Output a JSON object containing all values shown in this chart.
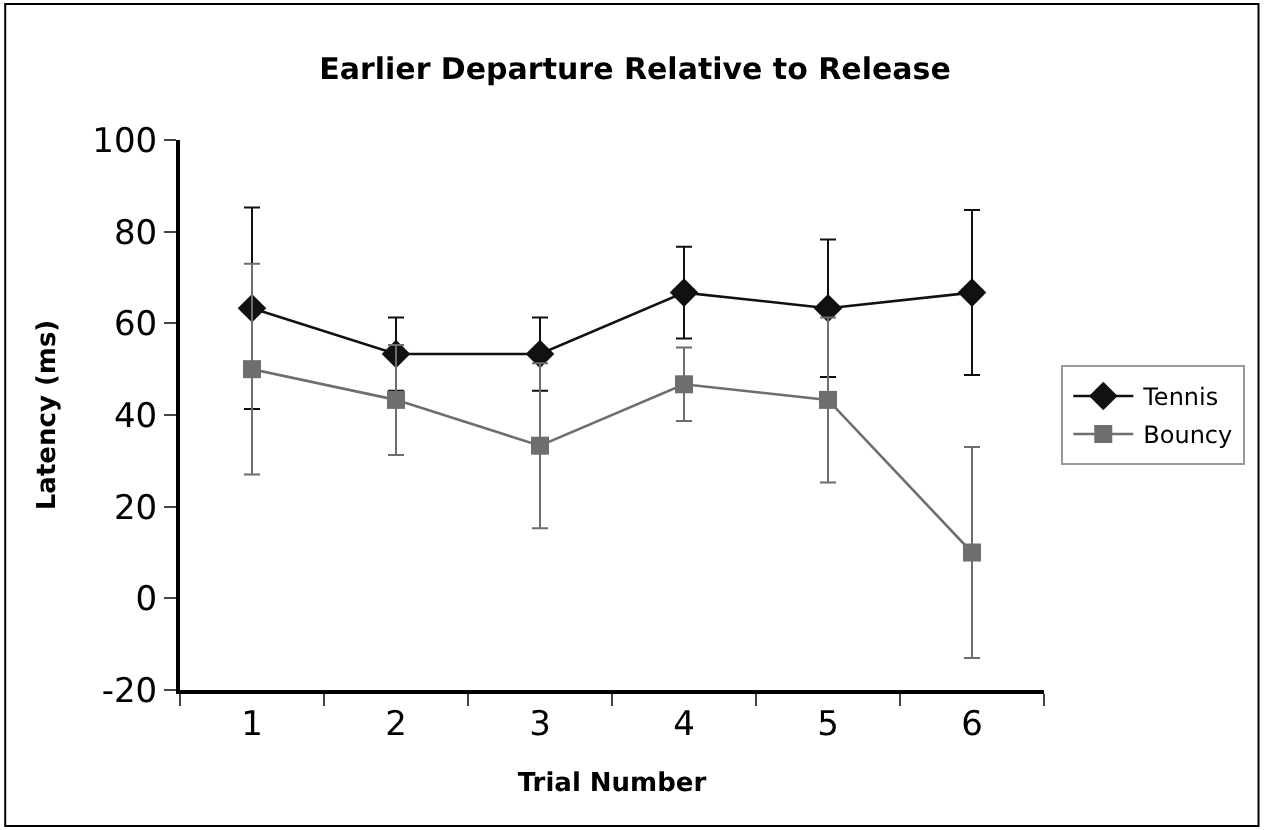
{
  "chart_data": {
    "type": "line",
    "title": "Earlier Departure Relative to Release",
    "xlabel": "Trial Number",
    "ylabel": "Latency (ms)",
    "categories": [
      "1",
      "2",
      "3",
      "4",
      "5",
      "6"
    ],
    "series": [
      {
        "name": "Tennis",
        "color": "#111111",
        "marker": "diamond",
        "values": [
          63.3,
          53.3,
          53.3,
          66.7,
          63.3,
          66.7
        ],
        "errors": [
          22,
          8,
          8,
          10,
          15,
          18
        ]
      },
      {
        "name": "Bouncy",
        "color": "#6e6e6e",
        "marker": "square",
        "values": [
          50,
          43.3,
          33.3,
          46.7,
          43.3,
          10
        ],
        "errors": [
          23,
          12,
          18,
          8,
          18,
          23
        ]
      }
    ],
    "ylim": [
      -20,
      100
    ],
    "yticks": [
      -20,
      0,
      20,
      40,
      60,
      80,
      100
    ],
    "legend": "right"
  }
}
